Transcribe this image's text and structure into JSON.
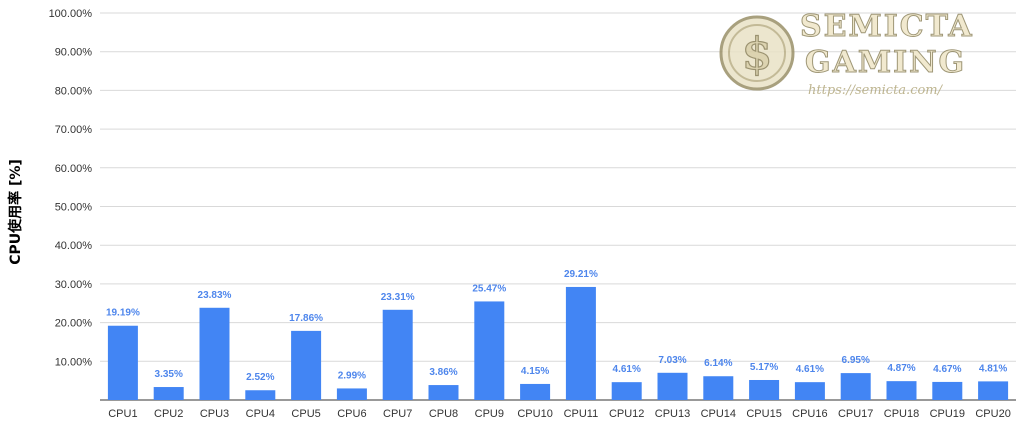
{
  "chart_data": {
    "type": "bar",
    "ylabel": "CPU使用率 [%]",
    "ylim": [
      0,
      100
    ],
    "yticks": [
      "100.00%",
      "90.00%",
      "80.00%",
      "70.00%",
      "60.00%",
      "50.00%",
      "40.00%",
      "30.00%",
      "20.00%",
      "10.00%"
    ],
    "grid": true,
    "bar_color": "#4285f4",
    "label_color": "#4e86ec",
    "categories": [
      "CPU1",
      "CPU2",
      "CPU3",
      "CPU4",
      "CPU5",
      "CPU6",
      "CPU7",
      "CPU8",
      "CPU9",
      "CPU10",
      "CPU11",
      "CPU12",
      "CPU13",
      "CPU14",
      "CPU15",
      "CPU16",
      "CPU17",
      "CPU18",
      "CPU19",
      "CPU20"
    ],
    "values": [
      19.19,
      3.35,
      23.83,
      2.52,
      17.86,
      2.99,
      23.31,
      3.86,
      25.47,
      4.15,
      29.21,
      4.61,
      7.03,
      6.14,
      5.17,
      4.61,
      6.95,
      4.87,
      4.67,
      4.81
    ],
    "value_labels": [
      "19.19%",
      "3.35%",
      "23.83%",
      "2.52%",
      "17.86%",
      "2.99%",
      "23.31%",
      "3.86%",
      "25.47%",
      "4.15%",
      "29.21%",
      "4.61%",
      "7.03%",
      "6.14%",
      "5.17%",
      "4.61%",
      "6.95%",
      "4.87%",
      "4.67%",
      "4.81%"
    ]
  },
  "watermark": {
    "line1": "SEMICTA",
    "line2": "GAMING",
    "url": "https://semicta.com/"
  }
}
